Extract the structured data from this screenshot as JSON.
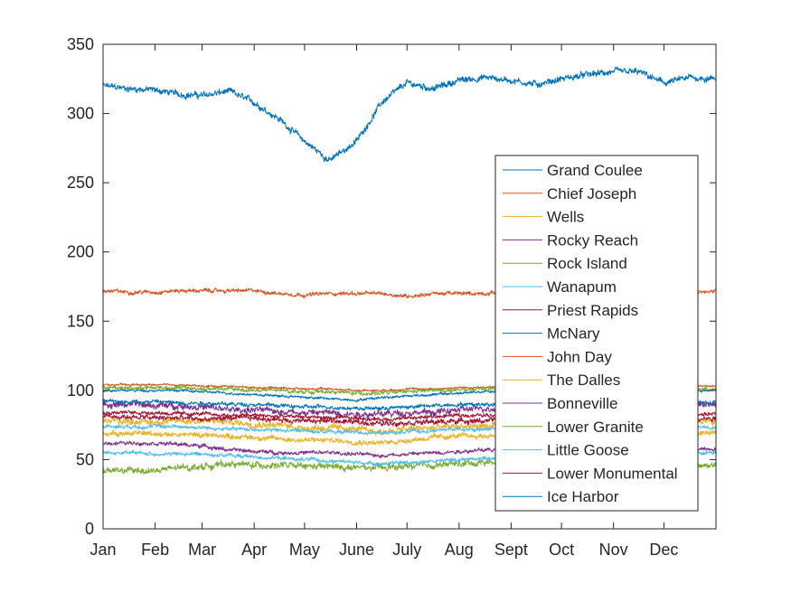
{
  "chart_data": {
    "type": "line",
    "title": "",
    "xlabel": "",
    "ylabel": "",
    "xlim": [
      0,
      365
    ],
    "ylim": [
      0,
      350
    ],
    "x_ticks": [
      {
        "label": "Jan",
        "day": 0
      },
      {
        "label": "Feb",
        "day": 31
      },
      {
        "label": "Mar",
        "day": 59
      },
      {
        "label": "Apr",
        "day": 90
      },
      {
        "label": "May",
        "day": 120
      },
      {
        "label": "June",
        "day": 151
      },
      {
        "label": "July",
        "day": 181
      },
      {
        "label": "Aug",
        "day": 212
      },
      {
        "label": "Sept",
        "day": 243
      },
      {
        "label": "Oct",
        "day": 273
      },
      {
        "label": "Nov",
        "day": 304
      },
      {
        "label": "Dec",
        "day": 334
      }
    ],
    "y_ticks": [
      0,
      50,
      100,
      150,
      200,
      250,
      300,
      350
    ],
    "grid": false,
    "legend_position": "right",
    "x_anchor_days": [
      0,
      15,
      31,
      45,
      59,
      75,
      90,
      105,
      120,
      135,
      151,
      166,
      181,
      197,
      212,
      228,
      243,
      258,
      273,
      289,
      304,
      319,
      334,
      350,
      365
    ],
    "series": [
      {
        "name": "Grand Coulee",
        "color": "#0072BD",
        "noise": 2.5,
        "values": [
          320,
          318,
          317,
          314,
          313,
          316,
          308,
          296,
          280,
          266,
          280,
          308,
          322,
          318,
          324,
          326,
          324,
          321,
          325,
          328,
          330,
          330,
          322,
          326,
          325
        ]
      },
      {
        "name": "Chief Joseph",
        "color": "#D95319",
        "noise": 1.5,
        "values": [
          172,
          171,
          171,
          172,
          172,
          172,
          172,
          170,
          169,
          170,
          170,
          170,
          168,
          170,
          170,
          170,
          172,
          172,
          172,
          172,
          172,
          172,
          172,
          171,
          171
        ]
      },
      {
        "name": "Wells",
        "color": "#EDB120",
        "noise": 2.5,
        "values": [
          78,
          78,
          77,
          78,
          78,
          77,
          76,
          75,
          73,
          73,
          72,
          70,
          72,
          73,
          74,
          74,
          75,
          75,
          76,
          76,
          77,
          77,
          78,
          78,
          78
        ]
      },
      {
        "name": "Rocky Reach",
        "color": "#7E2F8E",
        "noise": 2.5,
        "values": [
          90,
          90,
          89,
          89,
          88,
          86,
          86,
          85,
          84,
          84,
          83,
          83,
          84,
          84,
          86,
          87,
          88,
          88,
          89,
          89,
          89,
          90,
          90,
          90,
          90
        ]
      },
      {
        "name": "Rock Island",
        "color": "#77AC30",
        "noise": 2.5,
        "values": [
          42,
          42,
          42,
          44,
          45,
          47,
          46,
          46,
          45,
          45,
          44,
          44,
          45,
          46,
          47,
          48,
          48,
          48,
          48,
          48,
          47,
          47,
          46,
          46,
          46
        ]
      },
      {
        "name": "Wanapum",
        "color": "#4DBEEE",
        "noise": 1.5,
        "values": [
          55,
          55,
          54,
          54,
          54,
          53,
          52,
          51,
          50,
          49,
          48,
          47,
          48,
          49,
          50,
          51,
          52,
          52,
          53,
          53,
          54,
          54,
          54,
          55,
          55
        ]
      },
      {
        "name": "Priest Rapids",
        "color": "#A2142F",
        "noise": 2.0,
        "values": [
          81,
          81,
          80,
          80,
          79,
          80,
          80,
          79,
          78,
          78,
          77,
          76,
          77,
          77,
          78,
          78,
          79,
          79,
          80,
          80,
          80,
          80,
          80,
          80,
          80
        ]
      },
      {
        "name": "McNary",
        "color": "#0072BD",
        "noise": 1.0,
        "values": [
          100,
          100,
          100,
          100,
          99,
          98,
          97,
          96,
          95,
          94,
          93,
          95,
          96,
          97,
          98,
          99,
          99,
          100,
          100,
          100,
          100,
          100,
          100,
          100,
          100
        ]
      },
      {
        "name": "John Day",
        "color": "#D95319",
        "noise": 0.8,
        "values": [
          104,
          104,
          104,
          104,
          103,
          103,
          102,
          102,
          101,
          101,
          100,
          100,
          101,
          101,
          102,
          102,
          103,
          103,
          103,
          103,
          103,
          103,
          103,
          103,
          103
        ]
      },
      {
        "name": "The Dalles",
        "color": "#EDB120",
        "noise": 2.0,
        "values": [
          69,
          69,
          69,
          68,
          68,
          67,
          66,
          65,
          64,
          64,
          63,
          62,
          64,
          66,
          67,
          67,
          68,
          68,
          68,
          68,
          68,
          69,
          69,
          69,
          69
        ]
      },
      {
        "name": "Bonneville",
        "color": "#7E2F8E",
        "noise": 1.5,
        "values": [
          62,
          62,
          62,
          61,
          60,
          57,
          56,
          55,
          55,
          55,
          54,
          53,
          54,
          55,
          56,
          57,
          57,
          58,
          58,
          58,
          58,
          58,
          58,
          58,
          58
        ]
      },
      {
        "name": "Lower Granite",
        "color": "#77AC30",
        "noise": 1.5,
        "values": [
          102,
          102,
          102,
          102,
          101,
          101,
          100,
          100,
          99,
          99,
          98,
          98,
          99,
          100,
          100,
          101,
          101,
          101,
          101,
          101,
          101,
          101,
          101,
          101,
          101
        ]
      },
      {
        "name": "Little Goose",
        "color": "#4DBEEE",
        "noise": 1.5,
        "values": [
          74,
          74,
          74,
          74,
          73,
          72,
          72,
          71,
          71,
          70,
          70,
          69,
          70,
          71,
          72,
          72,
          73,
          73,
          73,
          73,
          73,
          74,
          74,
          74,
          74
        ]
      },
      {
        "name": "Lower Monumental",
        "color": "#A2142F",
        "noise": 1.5,
        "values": [
          84,
          84,
          84,
          83,
          83,
          82,
          82,
          81,
          81,
          80,
          80,
          79,
          80,
          81,
          82,
          82,
          82,
          83,
          83,
          83,
          83,
          83,
          83,
          83,
          83
        ]
      },
      {
        "name": "Ice Harbor",
        "color": "#0072BD",
        "noise": 1.5,
        "values": [
          92,
          92,
          92,
          91,
          91,
          90,
          90,
          89,
          88,
          88,
          87,
          87,
          88,
          89,
          90,
          90,
          91,
          91,
          91,
          91,
          91,
          91,
          91,
          91,
          91
        ]
      }
    ]
  }
}
